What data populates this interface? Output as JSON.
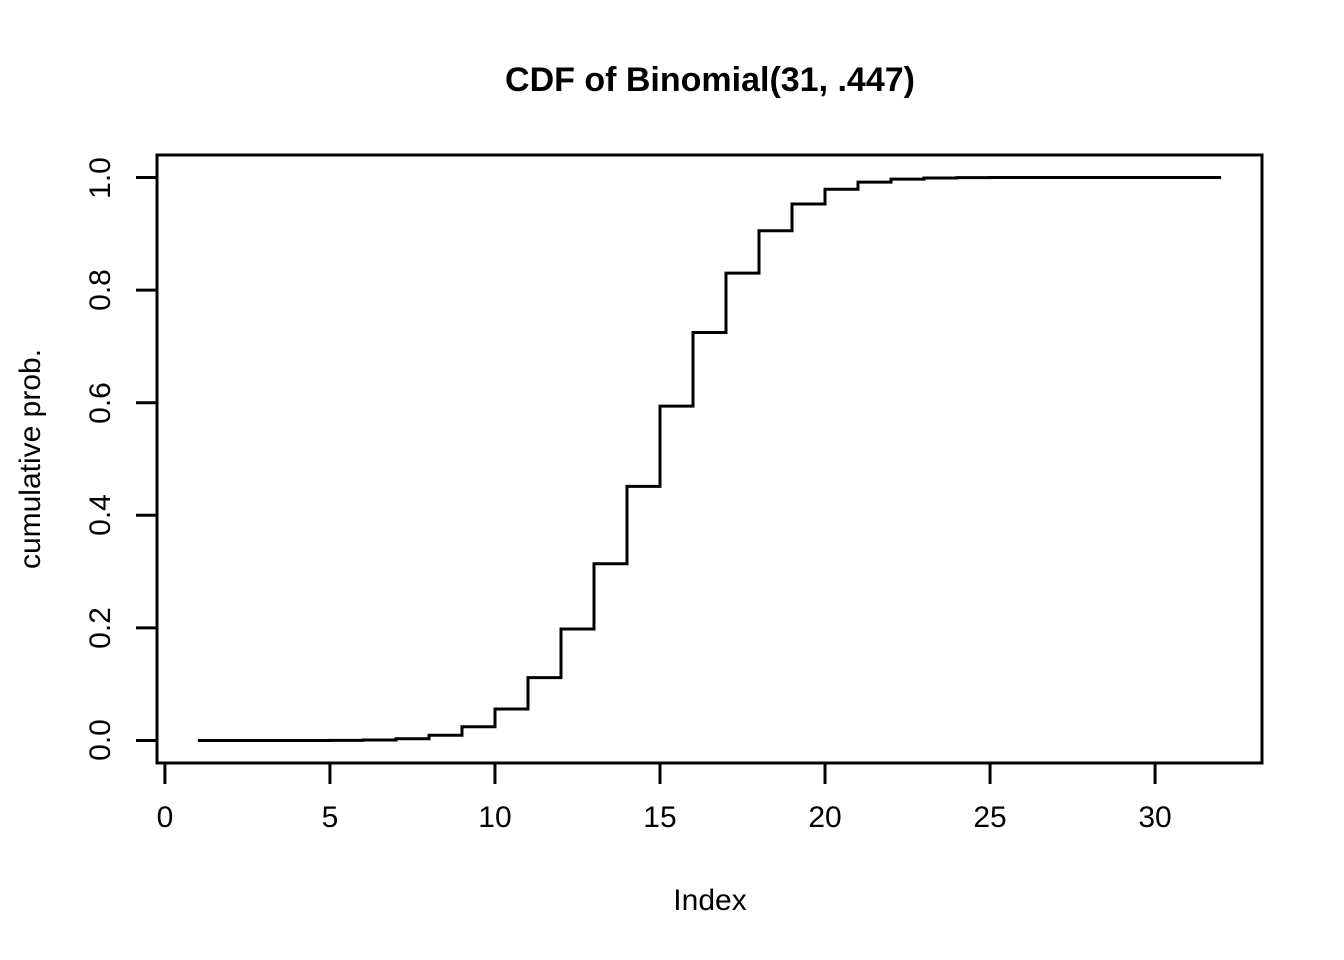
{
  "page": {
    "background_color": "#ffffff",
    "text_color": "#000000"
  },
  "chart_data": {
    "type": "line",
    "subtype": "step-post",
    "title": "CDF of Binomial(31, .447)",
    "xlabel": "Index",
    "ylabel": "cumulative prob.",
    "line_color": "#000000",
    "grid": false,
    "legend": null,
    "xlim": [
      -0.24,
      33.24
    ],
    "ylim": [
      -0.04,
      1.04
    ],
    "x_ticks": [
      "0",
      "5",
      "10",
      "15",
      "20",
      "25",
      "30"
    ],
    "x_tick_values": [
      0,
      5,
      10,
      15,
      20,
      25,
      30
    ],
    "y_ticks": [
      "0.0",
      "0.2",
      "0.4",
      "0.6",
      "0.8",
      "1.0"
    ],
    "y_tick_values": [
      0.0,
      0.2,
      0.4,
      0.6,
      0.8,
      1.0
    ],
    "x": [
      1,
      2,
      3,
      4,
      5,
      6,
      7,
      8,
      9,
      10,
      11,
      12,
      13,
      14,
      15,
      16,
      17,
      18,
      19,
      20,
      21,
      22,
      23,
      24,
      25,
      26,
      27,
      28,
      29,
      30,
      31,
      32
    ],
    "y": [
      0.0,
      0.0,
      0.0,
      0.0,
      0.0002,
      0.0008,
      0.003,
      0.0092,
      0.0244,
      0.0559,
      0.1117,
      0.198,
      0.3141,
      0.4514,
      0.594,
      0.7247,
      0.8303,
      0.9056,
      0.953,
      0.9792,
      0.9919,
      0.9972,
      0.9992,
      0.9998,
      1.0,
      1.0,
      1.0,
      1.0,
      1.0,
      1.0,
      1.0,
      1.0
    ]
  }
}
